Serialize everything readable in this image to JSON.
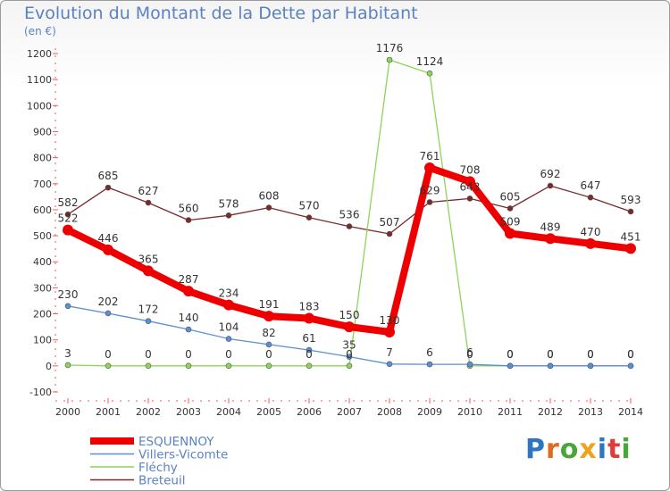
{
  "title": "Evolution du Montant de la Dette par Habitant",
  "unit": "(en €)",
  "logo": {
    "text": "Proxiti",
    "colors": [
      "#2c76c2",
      "#e06a1e",
      "#4aa63a",
      "#f0a21c",
      "#2c76c2",
      "#e03a3a",
      "#4aa63a"
    ]
  },
  "chart_data": {
    "type": "line",
    "x": [
      "2000",
      "2001",
      "2002",
      "2003",
      "2004",
      "2005",
      "2006",
      "2007",
      "2008",
      "2009",
      "2010",
      "2011",
      "2012",
      "2013",
      "2014"
    ],
    "ylim": [
      -100,
      1200
    ],
    "yticks": [
      "-100",
      "0",
      "100",
      "200",
      "300",
      "400",
      "500",
      "600",
      "700",
      "800",
      "900",
      "1000",
      "1100",
      "1200"
    ],
    "grid": false,
    "legend_position": "bottom-left",
    "series": [
      {
        "name": "ESQUENNOY",
        "color": "#ee0000",
        "values": [
          522,
          446,
          365,
          287,
          234,
          191,
          183,
          150,
          130,
          761,
          708,
          509,
          489,
          470,
          451
        ],
        "labels": [
          "522",
          "446",
          "365",
          "287",
          "234",
          "191",
          "183",
          "150",
          "130",
          "761",
          "708",
          "509",
          "489",
          "470",
          "451"
        ]
      },
      {
        "name": "Villers-Vicomte",
        "color": "#5b8fd4",
        "values": [
          230,
          202,
          172,
          140,
          104,
          82,
          61,
          35,
          7,
          6,
          6,
          0,
          0,
          0,
          0
        ],
        "labels": [
          "230",
          "202",
          "172",
          "140",
          "104",
          "82",
          "61",
          "35",
          "7",
          "6",
          "6",
          "0",
          "0",
          "0",
          "0"
        ]
      },
      {
        "name": "Fléchy",
        "color": "#8fd45a",
        "values": [
          3,
          0,
          0,
          0,
          0,
          0,
          0,
          0,
          1176,
          1124,
          0,
          0,
          0,
          0,
          0
        ],
        "labels": [
          "3",
          "0",
          "0",
          "0",
          "0",
          "0",
          "0",
          "0",
          "1176",
          "1124",
          "0",
          "0",
          "0",
          "0",
          "0"
        ]
      },
      {
        "name": "Breteuil",
        "color": "#7a2a2a",
        "values": [
          582,
          685,
          627,
          560,
          578,
          608,
          570,
          536,
          507,
          629,
          643,
          605,
          692,
          647,
          593
        ],
        "labels": [
          "582",
          "685",
          "627",
          "560",
          "578",
          "608",
          "570",
          "536",
          "507",
          "629",
          "643",
          "605",
          "692",
          "647",
          "593"
        ]
      }
    ]
  }
}
